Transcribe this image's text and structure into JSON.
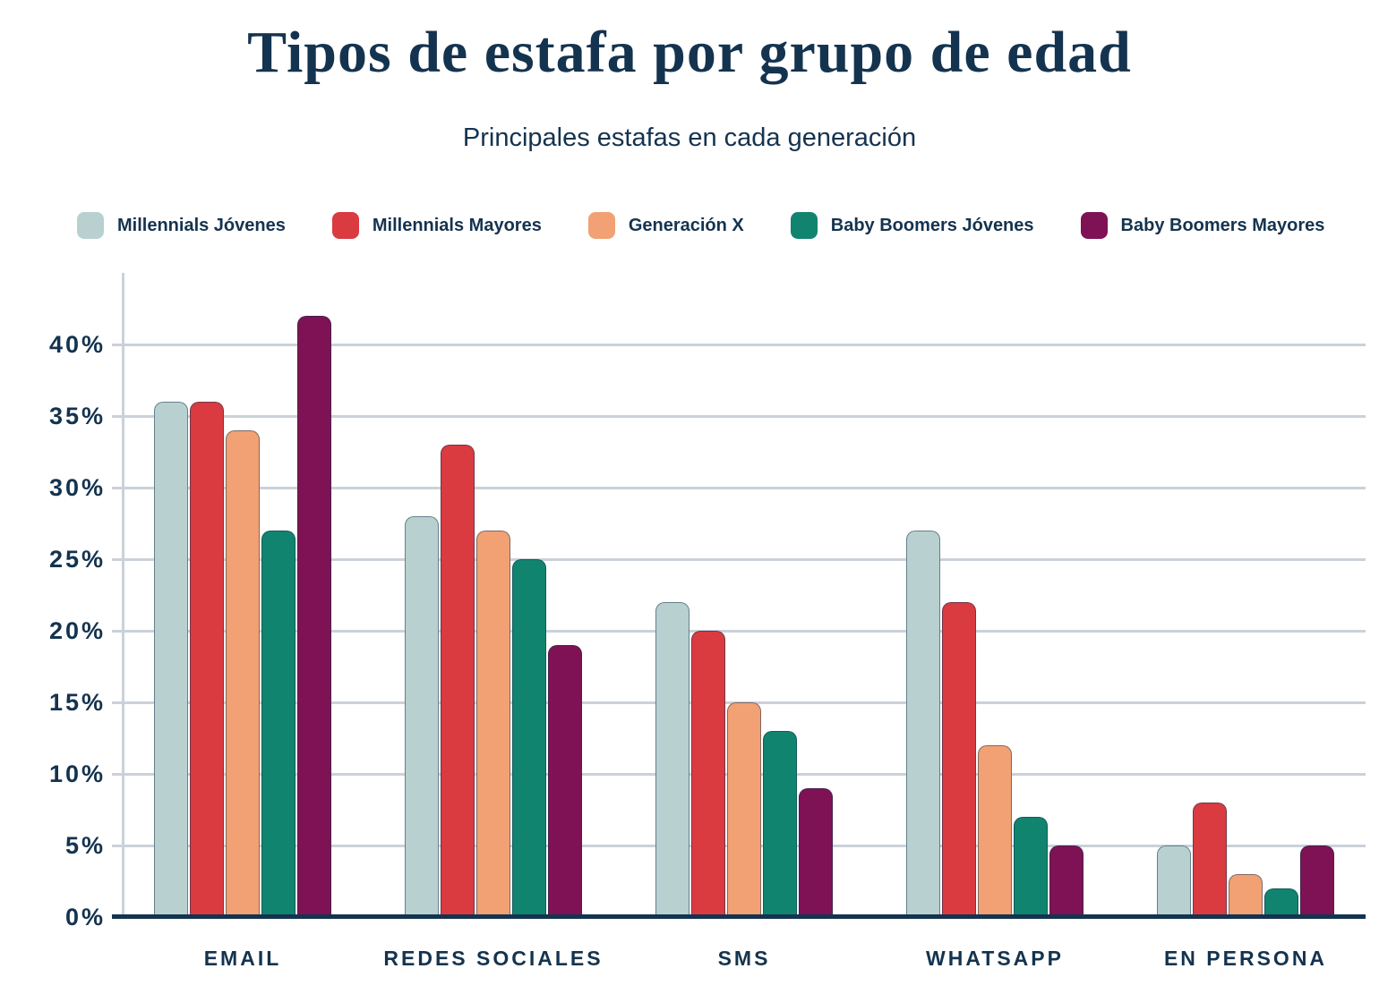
{
  "title": "Tipos de estafa por grupo de edad",
  "subtitle": "Principales estafas en cada generación",
  "colors": {
    "text": "#14334f",
    "grid": "#cbd1d9",
    "axis": "#14334f",
    "background": "#ffffff"
  },
  "chart_data": {
    "type": "bar",
    "title": "Tipos de estafa por grupo de edad",
    "subtitle": "Principales estafas en cada generación",
    "categories": [
      "EMAIL",
      "REDES SOCIALES",
      "SMS",
      "WHATSAPP",
      "EN PERSONA"
    ],
    "series": [
      {
        "name": "Millennials Jóvenes",
        "color": "#b8d1d0",
        "values": [
          36,
          28,
          22,
          27,
          5
        ]
      },
      {
        "name": "Millennials Mayores",
        "color": "#d93b41",
        "values": [
          36,
          33,
          20,
          22,
          8
        ]
      },
      {
        "name": "Generación X",
        "color": "#f1a173",
        "values": [
          34,
          27,
          15,
          12,
          3
        ]
      },
      {
        "name": "Baby Boomers Jóvenes",
        "color": "#11846f",
        "values": [
          27,
          25,
          13,
          7,
          2
        ]
      },
      {
        "name": "Baby Boomers Mayores",
        "color": "#7f1254",
        "values": [
          42,
          19,
          9,
          5,
          5
        ]
      }
    ],
    "xlabel": "",
    "ylabel": "",
    "ylim": [
      0,
      45
    ],
    "yticks": [
      0,
      5,
      10,
      15,
      20,
      25,
      30,
      35,
      40
    ],
    "ytick_suffix": "%",
    "grid": "horizontal",
    "legend_position": "top-left"
  }
}
